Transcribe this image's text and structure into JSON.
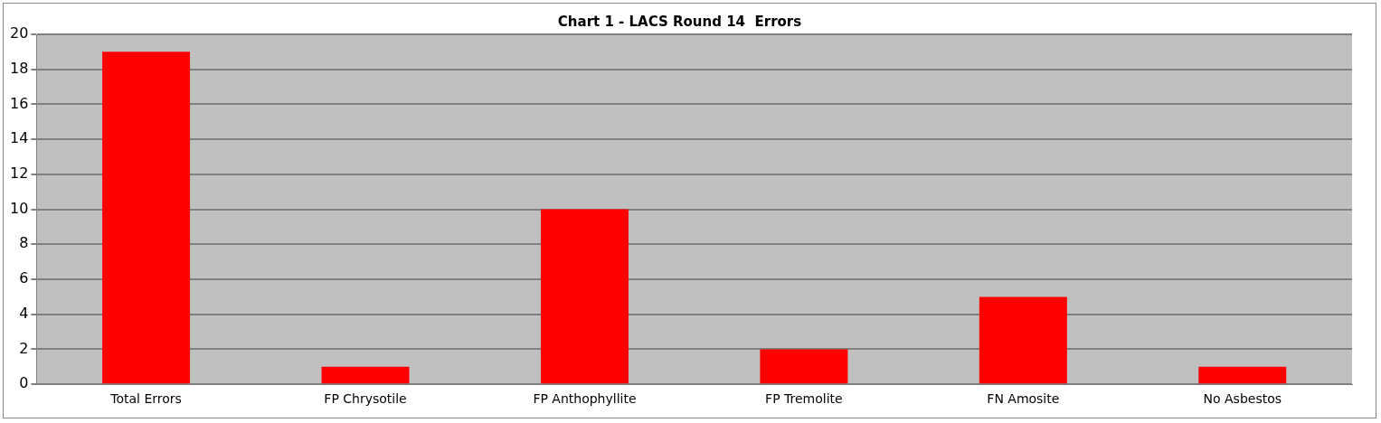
{
  "chart_data": {
    "type": "bar",
    "title": "Chart 1 - LACS Round 14  Errors",
    "categories": [
      "Total Errors",
      "FP Chrysotile",
      "FP Anthophyllite",
      "FP Tremolite",
      "FN Amosite",
      "No Asbestos"
    ],
    "values": [
      19,
      1,
      10,
      2,
      5,
      1
    ],
    "color": "#ff0000",
    "ylim": [
      0,
      20
    ],
    "yticks": [
      0,
      2,
      4,
      6,
      8,
      10,
      12,
      14,
      16,
      18,
      20
    ],
    "grid": "y",
    "legend": false
  }
}
